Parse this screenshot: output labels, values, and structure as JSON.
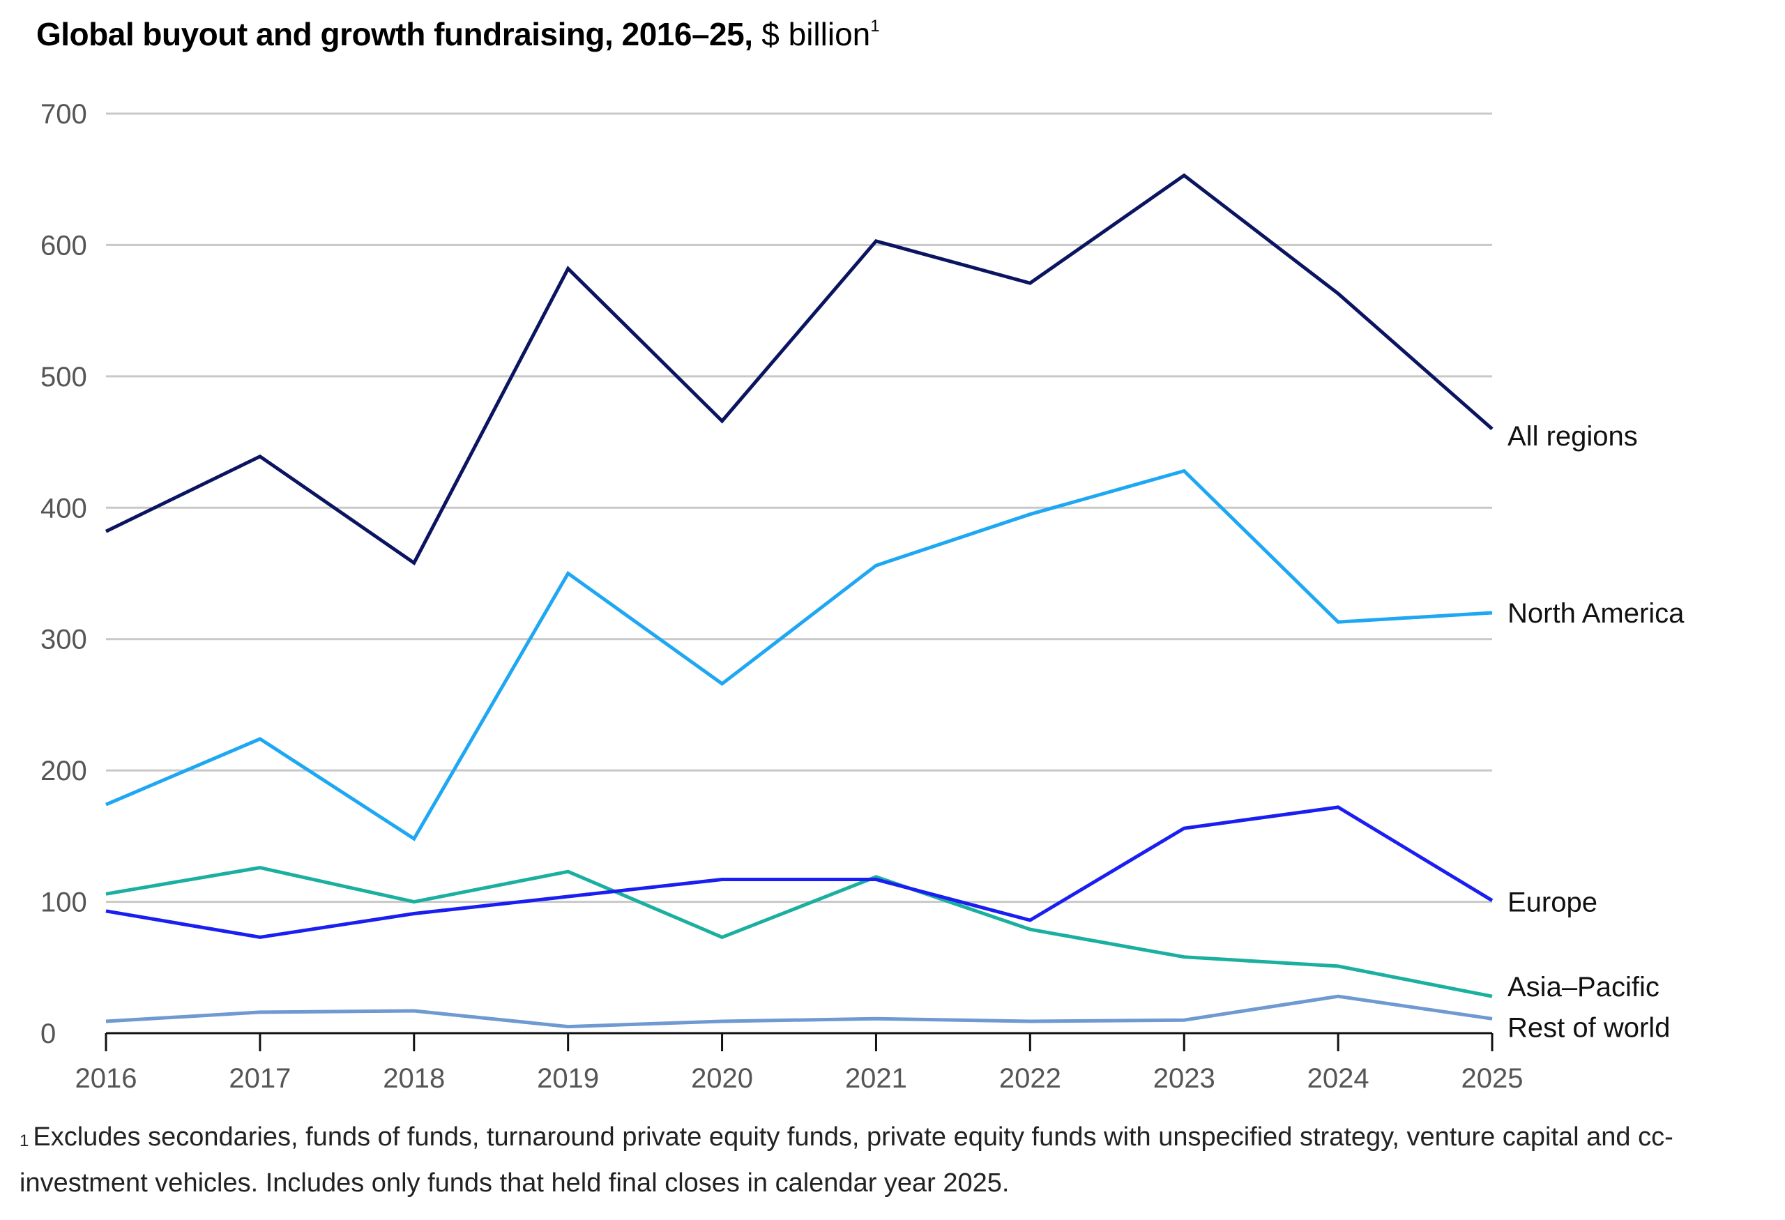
{
  "title": {
    "bold": "Global buyout and growth fundraising, 2016–25,",
    "unit": "$ billion",
    "footnote_marker": "1"
  },
  "footnote": {
    "marker": "1",
    "text": "Excludes secondaries, funds of funds, turnaround private equity funds, private equity funds with unspecified strategy, venture capital and cc-investment vehicles. Includes only funds that held final closes in calendar year 2025."
  },
  "chart_data": {
    "type": "line",
    "title": "Global buyout and growth fundraising, 2016–25, $ billion",
    "xlabel": "",
    "ylabel": "",
    "ylim": [
      0,
      700
    ],
    "yticks": [
      0,
      100,
      200,
      300,
      400,
      500,
      600,
      700
    ],
    "grid": true,
    "x": [
      "2016",
      "2017",
      "2018",
      "2019",
      "2020",
      "2021",
      "2022",
      "2023",
      "2024",
      "2025"
    ],
    "series": [
      {
        "name": "All regions",
        "color": "#0b1460",
        "values": [
          382,
          439,
          358,
          582,
          466,
          603,
          571,
          653,
          563,
          460
        ]
      },
      {
        "name": "North America",
        "color": "#1ea7f2",
        "values": [
          174,
          224,
          148,
          350,
          266,
          356,
          395,
          428,
          313,
          320
        ]
      },
      {
        "name": "Europe",
        "color": "#1a1ef0",
        "values": [
          93,
          73,
          91,
          104,
          117,
          117,
          86,
          156,
          172,
          101
        ]
      },
      {
        "name": "Asia–Pacific",
        "color": "#1aaf9f",
        "values": [
          106,
          126,
          100,
          123,
          73,
          119,
          79,
          58,
          51,
          28
        ]
      },
      {
        "name": "Rest of world",
        "color": "#6f99d1",
        "values": [
          9,
          16,
          17,
          5,
          9,
          11,
          9,
          10,
          28,
          11
        ]
      }
    ]
  }
}
